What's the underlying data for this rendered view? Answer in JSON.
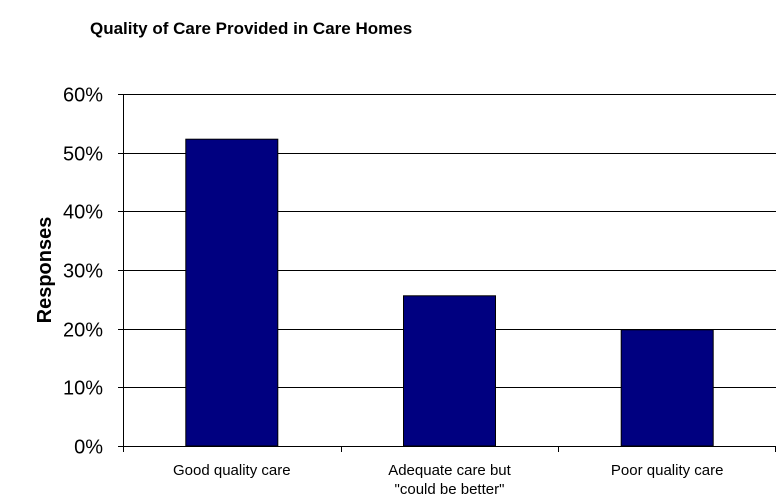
{
  "chart_data": {
    "type": "bar",
    "title": "Quality of Care Provided in Care Homes",
    "xlabel": "",
    "ylabel": "Responses",
    "categories": [
      [
        "Good quality care"
      ],
      [
        "Adequate care but",
        "\"could be better\""
      ],
      [
        "Poor quality care"
      ]
    ],
    "values": [
      52.3,
      25.6,
      19.8
    ],
    "ylim": [
      0,
      60
    ],
    "yticks": [
      0,
      10,
      20,
      30,
      40,
      50,
      60
    ],
    "ytick_labels": [
      "0%",
      "10%",
      "20%",
      "30%",
      "40%",
      "50%",
      "60%"
    ],
    "grid": true,
    "bar_color": "#000080",
    "legend": "none"
  }
}
